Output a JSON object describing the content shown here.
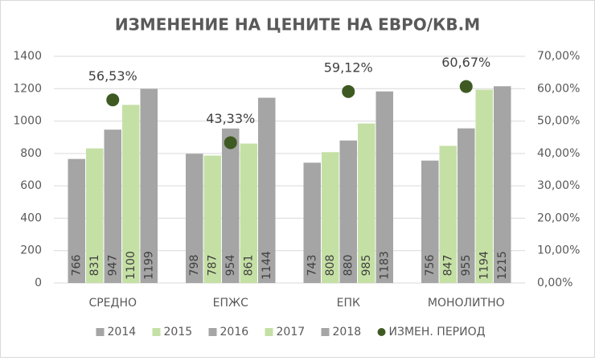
{
  "chart_data": {
    "type": "bar",
    "title": "ИЗМЕНЕНИЕ НА ЦЕНИТЕ НА ЕВРО/КВ.М",
    "categories": [
      "СРЕДНО",
      "ЕПЖС",
      "ЕПК",
      "МОНОЛИТНО"
    ],
    "series": [
      {
        "name": "2014",
        "color": "#a5a5a5",
        "values": [
          766,
          798,
          743,
          756
        ]
      },
      {
        "name": "2015",
        "color": "#c5e0a5",
        "values": [
          831,
          787,
          808,
          847
        ]
      },
      {
        "name": "2016",
        "color": "#a5a5a5",
        "values": [
          947,
          954,
          880,
          955
        ]
      },
      {
        "name": "2017",
        "color": "#c5e0a5",
        "values": [
          1100,
          861,
          985,
          1194
        ]
      },
      {
        "name": "2018",
        "color": "#a5a5a5",
        "values": [
          1199,
          1144,
          1183,
          1215
        ]
      },
      {
        "name": "ИЗМЕН. ПЕРИОД",
        "color": "#3e5a22",
        "type": "scatter",
        "axis": "y2",
        "values": [
          56.53,
          43.33,
          59.12,
          60.67
        ],
        "value_labels": [
          "56,53%",
          "43,33%",
          "59,12%",
          "60,67%"
        ]
      }
    ],
    "ylim": [
      0,
      1400
    ],
    "yticks": [
      0,
      200,
      400,
      600,
      800,
      1000,
      1200,
      1400
    ],
    "y2lim": [
      0,
      70
    ],
    "y2ticks": [
      {
        "value": 0,
        "label": "0,00%"
      },
      {
        "value": 10,
        "label": "10,00%"
      },
      {
        "value": 20,
        "label": "20,00%"
      },
      {
        "value": 30,
        "label": "30,00%"
      },
      {
        "value": 40,
        "label": "40,00%"
      },
      {
        "value": 50,
        "label": "50,00%"
      },
      {
        "value": 60,
        "label": "60,00%"
      },
      {
        "value": 70,
        "label": "70,00%"
      }
    ],
    "grid": true,
    "legend": "bottom"
  }
}
